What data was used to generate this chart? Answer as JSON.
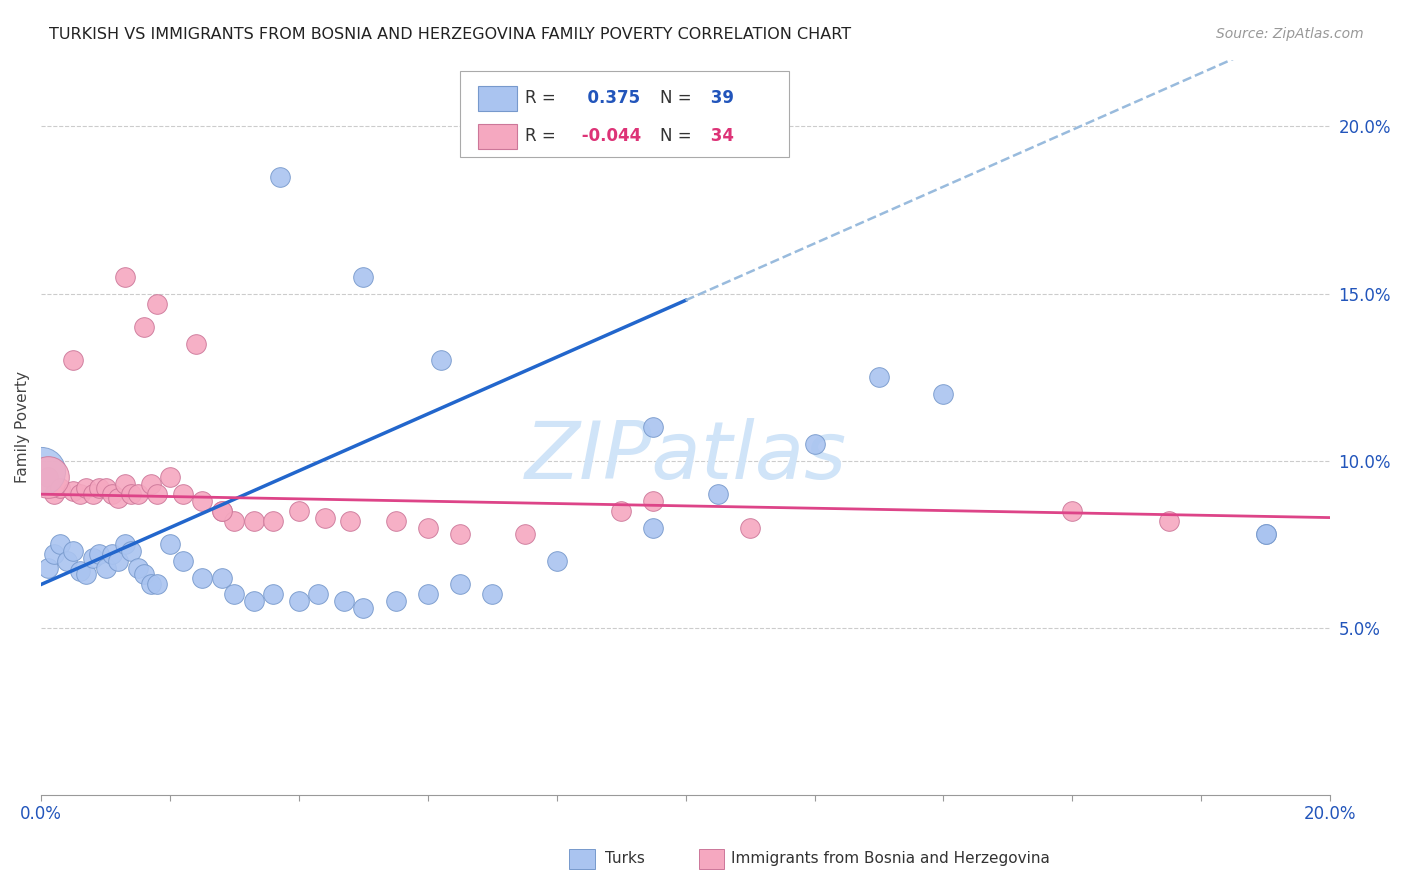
{
  "title": "TURKISH VS IMMIGRANTS FROM BOSNIA AND HERZEGOVINA FAMILY POVERTY CORRELATION CHART",
  "source": "Source: ZipAtlas.com",
  "ylabel": "Family Poverty",
  "ytick_labels": [
    "5.0%",
    "10.0%",
    "15.0%",
    "20.0%"
  ],
  "ytick_values": [
    0.05,
    0.1,
    0.15,
    0.2
  ],
  "xlim": [
    0.0,
    0.2
  ],
  "ylim": [
    0.0,
    0.22
  ],
  "turks_R": 0.375,
  "turks_N": 39,
  "bosnia_R": -0.044,
  "bosnia_N": 34,
  "turk_color": "#aac4f0",
  "turk_edge": "#7799cc",
  "bosnia_color": "#f5a8c0",
  "bosnia_edge": "#cc7799",
  "trendline_turk_color": "#2266cc",
  "trendline_bosnia_color": "#dd4488",
  "trendline_ext_color": "#99bbdd",
  "watermark_color": "#d0e4f8",
  "turks_x": [
    0.001,
    0.002,
    0.003,
    0.004,
    0.005,
    0.006,
    0.007,
    0.008,
    0.009,
    0.01,
    0.011,
    0.012,
    0.013,
    0.014,
    0.015,
    0.016,
    0.017,
    0.018,
    0.02,
    0.022,
    0.025,
    0.028,
    0.03,
    0.033,
    0.036,
    0.04,
    0.043,
    0.047,
    0.05,
    0.055,
    0.06,
    0.065,
    0.07,
    0.08,
    0.095,
    0.105,
    0.12,
    0.14,
    0.19
  ],
  "turks_y": [
    0.068,
    0.072,
    0.075,
    0.07,
    0.073,
    0.067,
    0.066,
    0.071,
    0.072,
    0.068,
    0.072,
    0.07,
    0.075,
    0.073,
    0.068,
    0.066,
    0.063,
    0.063,
    0.075,
    0.07,
    0.065,
    0.065,
    0.06,
    0.058,
    0.06,
    0.058,
    0.06,
    0.058,
    0.056,
    0.058,
    0.06,
    0.063,
    0.06,
    0.07,
    0.08,
    0.09,
    0.105,
    0.12,
    0.078
  ],
  "bosnia_x": [
    0.001,
    0.002,
    0.003,
    0.005,
    0.006,
    0.007,
    0.008,
    0.009,
    0.01,
    0.011,
    0.012,
    0.013,
    0.014,
    0.015,
    0.016,
    0.017,
    0.018,
    0.02,
    0.022,
    0.025,
    0.028,
    0.03,
    0.033,
    0.036,
    0.04,
    0.044,
    0.048,
    0.055,
    0.06,
    0.065,
    0.075,
    0.09,
    0.11,
    0.175
  ],
  "bosnia_y": [
    0.095,
    0.09,
    0.092,
    0.091,
    0.09,
    0.092,
    0.09,
    0.092,
    0.092,
    0.09,
    0.089,
    0.093,
    0.09,
    0.09,
    0.14,
    0.093,
    0.09,
    0.095,
    0.09,
    0.088,
    0.085,
    0.082,
    0.082,
    0.082,
    0.085,
    0.083,
    0.082,
    0.082,
    0.08,
    0.078,
    0.078,
    0.085,
    0.08,
    0.082
  ]
}
